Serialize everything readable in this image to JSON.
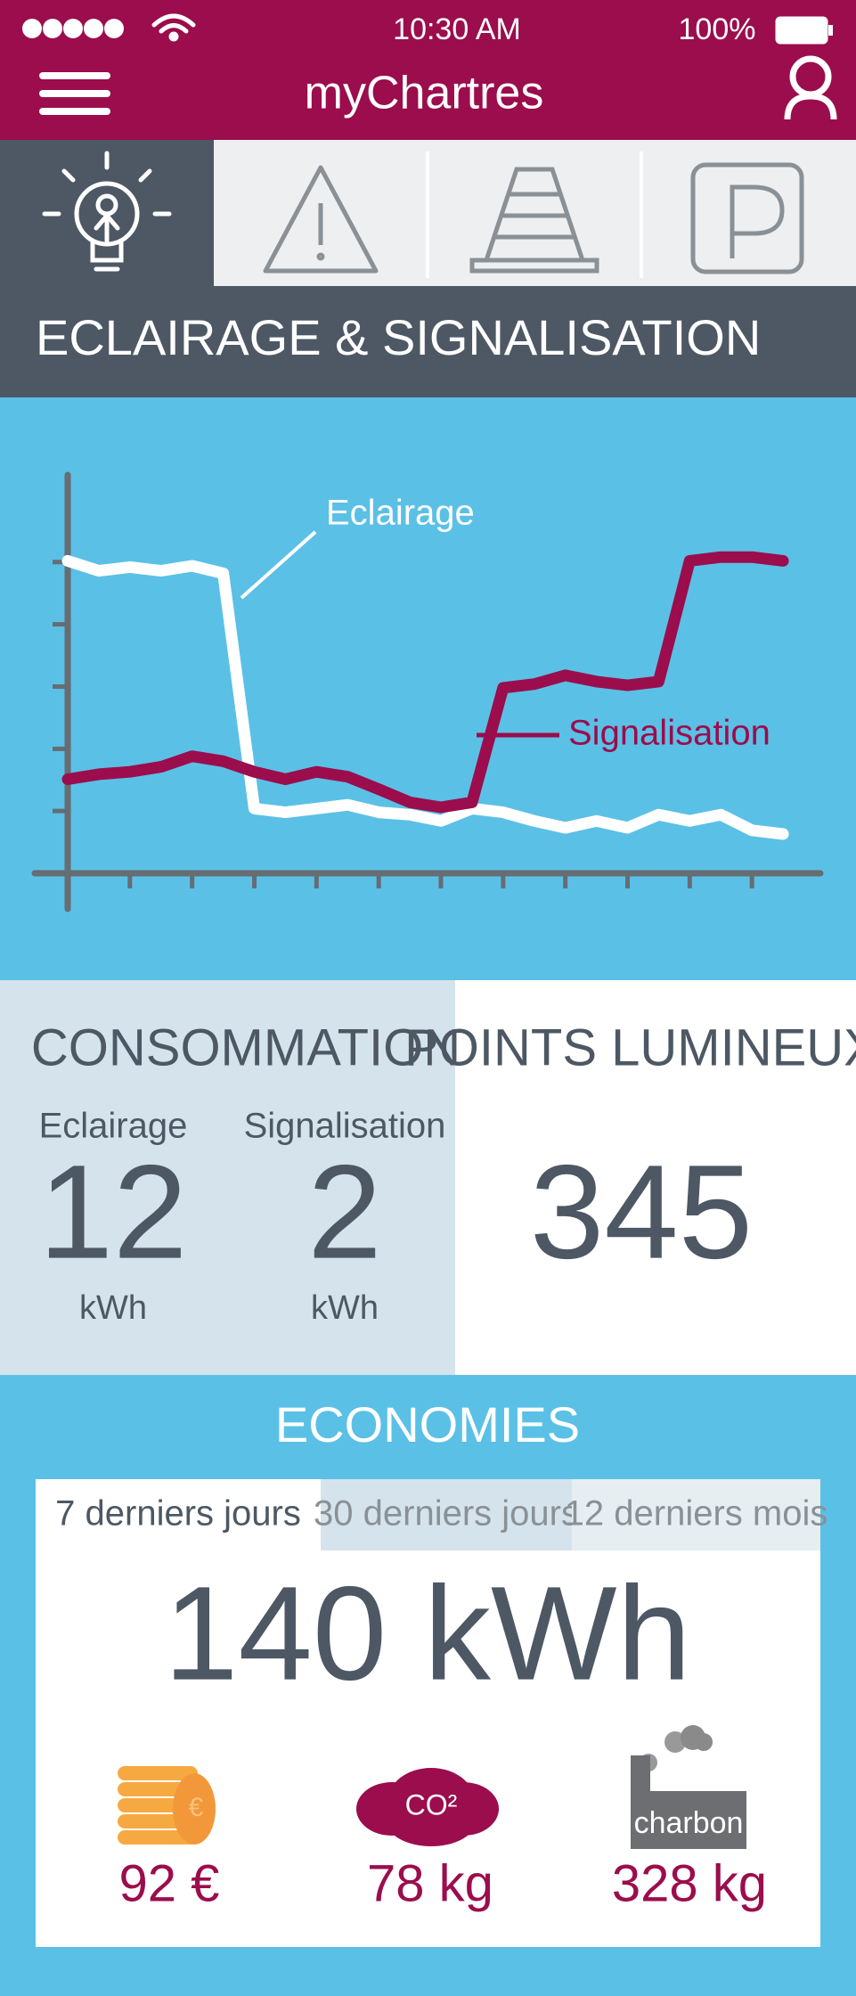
{
  "status_bar": {
    "time": "10:30 AM",
    "battery": "100%"
  },
  "header": {
    "title": "myChartres"
  },
  "section": {
    "title": "ECLAIRAGE & SIGNALISATION"
  },
  "chart_data": {
    "type": "line",
    "x": [
      0,
      0.5,
      1,
      1.5,
      2,
      2.5,
      3,
      3.5,
      4,
      4.5,
      5,
      5.5,
      6,
      6.5,
      7,
      7.5,
      8,
      8.5,
      9,
      9.5,
      10,
      10.5,
      11,
      11.5
    ],
    "xlim": [
      0,
      12.1
    ],
    "xticks": [
      1,
      2,
      3,
      4,
      5,
      6,
      7,
      8,
      9,
      10,
      11
    ],
    "ylim": [
      0,
      6.4
    ],
    "yticks": [
      1,
      2,
      3,
      4,
      5
    ],
    "series": [
      {
        "name": "Eclairage",
        "color": "#ffffff",
        "values": [
          5.02,
          4.86,
          4.92,
          4.86,
          4.94,
          4.82,
          1.04,
          0.98,
          1.04,
          1.1,
          0.98,
          0.94,
          0.84,
          1.04,
          0.98,
          0.84,
          0.73,
          0.84,
          0.73,
          0.94,
          0.84,
          0.94,
          0.69,
          0.63
        ]
      },
      {
        "name": "Signalisation",
        "color": "#9b0d4c",
        "values": [
          1.51,
          1.59,
          1.63,
          1.71,
          1.88,
          1.8,
          1.63,
          1.51,
          1.63,
          1.55,
          1.35,
          1.14,
          1.06,
          1.14,
          2.98,
          3.04,
          3.18,
          3.08,
          3.02,
          3.08,
          5.02,
          5.08,
          5.08,
          5.02
        ]
      }
    ]
  },
  "consommation": {
    "title": "CONSOMMATION",
    "items": [
      {
        "label": "Eclairage",
        "value": 12,
        "unit": "kWh"
      },
      {
        "label": "Signalisation",
        "value": 2,
        "unit": "kWh"
      }
    ]
  },
  "points_lumineux": {
    "title": "POINTS LUMINEUX",
    "value": 345
  },
  "economies": {
    "title": "ECONOMIES",
    "tabs": [
      "7 derniers jours",
      "30 derniers jours",
      "12 derniers mois"
    ],
    "active_tab": 0,
    "total": "140 kWh",
    "items": [
      {
        "icon_label": "€",
        "value": "92 €"
      },
      {
        "icon_label": "CO²",
        "value": "78 kg"
      },
      {
        "icon_label": "charbon",
        "value": "328 kg"
      }
    ]
  }
}
